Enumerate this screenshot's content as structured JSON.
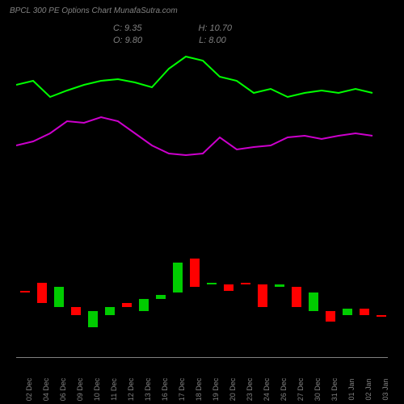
{
  "title": "BPCL 300 PE Options Chart MunafaSutra.com",
  "info": {
    "c": "C: 9.35",
    "h": "H: 10.70",
    "o": "O: 9.80",
    "l": "L: 8.00"
  },
  "colors": {
    "background": "#000000",
    "text": "#808080",
    "up_candle": "#00cc00",
    "down_candle": "#ff0000",
    "line1": "#00ff00",
    "line2": "#cc00cc",
    "axis": "#808080"
  },
  "x_labels": [
    "02 Dec",
    "04 Dec",
    "06 Dec",
    "09 Dec",
    "10 Dec",
    "11 Dec",
    "12 Dec",
    "13 Dec",
    "16 Dec",
    "17 Dec",
    "18 Dec",
    "19 Dec",
    "20 Dec",
    "23 Dec",
    "24 Dec",
    "26 Dec",
    "27 Dec",
    "30 Dec",
    "31 Dec",
    "01 Jan",
    "02 Jan",
    "03 Jan"
  ],
  "candle_chart": {
    "type": "candlestick",
    "y_top": 230,
    "y_range": 150,
    "spacing": 21,
    "x_start": 5,
    "data": [
      {
        "o": 70,
        "c": 70,
        "h": 70,
        "l": 70,
        "dir": "flat"
      },
      {
        "o": 60,
        "c": 85,
        "h": 85,
        "l": 60,
        "dir": "down"
      },
      {
        "o": 90,
        "c": 65,
        "h": 92,
        "l": 60,
        "dir": "up"
      },
      {
        "o": 90,
        "c": 100,
        "h": 105,
        "l": 85,
        "dir": "down"
      },
      {
        "o": 115,
        "c": 95,
        "h": 118,
        "l": 92,
        "dir": "up"
      },
      {
        "o": 100,
        "c": 90,
        "h": 105,
        "l": 85,
        "dir": "up"
      },
      {
        "o": 85,
        "c": 90,
        "h": 92,
        "l": 82,
        "dir": "down"
      },
      {
        "o": 95,
        "c": 80,
        "h": 95,
        "l": 78,
        "dir": "up"
      },
      {
        "o": 80,
        "c": 75,
        "h": 85,
        "l": 70,
        "dir": "up"
      },
      {
        "o": 72,
        "c": 35,
        "h": 75,
        "l": 32,
        "dir": "up"
      },
      {
        "o": 30,
        "c": 65,
        "h": 70,
        "l": 28,
        "dir": "down"
      },
      {
        "o": 62,
        "c": 60,
        "h": 65,
        "l": 55,
        "dir": "up"
      },
      {
        "o": 62,
        "c": 70,
        "h": 72,
        "l": 58,
        "dir": "down"
      },
      {
        "o": 60,
        "c": 62,
        "h": 75,
        "l": 55,
        "dir": "down"
      },
      {
        "o": 62,
        "c": 90,
        "h": 95,
        "l": 60,
        "dir": "down"
      },
      {
        "o": 65,
        "c": 62,
        "h": 70,
        "l": 58,
        "dir": "up"
      },
      {
        "o": 65,
        "c": 90,
        "h": 92,
        "l": 62,
        "dir": "down"
      },
      {
        "o": 95,
        "c": 72,
        "h": 98,
        "l": 70,
        "dir": "up"
      },
      {
        "o": 95,
        "c": 108,
        "h": 110,
        "l": 85,
        "dir": "down"
      },
      {
        "o": 100,
        "c": 92,
        "h": 105,
        "l": 88,
        "dir": "up"
      },
      {
        "o": 92,
        "c": 100,
        "h": 102,
        "l": 88,
        "dir": "down"
      },
      {
        "o": 100,
        "c": 100,
        "h": 100,
        "l": 100,
        "dir": "flat"
      }
    ]
  },
  "line1_points": "0,45 21,40 42,60 63,52 84,45 105,40 126,38 147,42 168,48 189,25 210,10 231,15 252,35 273,40 294,55 315,50 336,60 357,55 378,52 399,55 420,50 441,55",
  "line2_points": "0,120 21,115 42,105 63,90 84,92 105,85 126,90 147,105 168,120 189,130 210,132 231,130 252,110 273,125 294,122 315,120 336,110 357,108 378,112 399,108 420,105 441,108"
}
